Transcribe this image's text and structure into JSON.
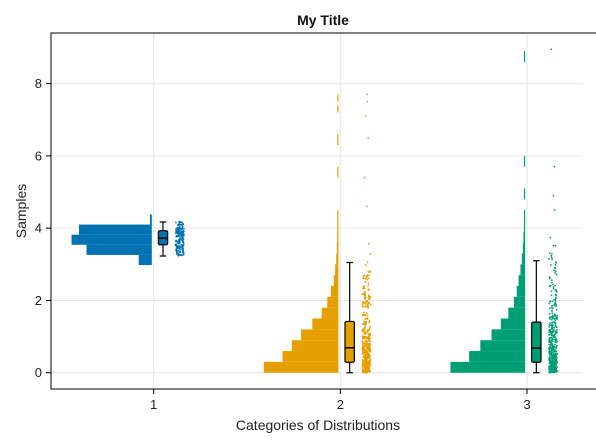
{
  "chart_data": {
    "type": "raincloud",
    "title": "My Title",
    "xlabel": "Categories of Distributions",
    "ylabel": "Samples",
    "xlim": [
      0.45,
      3.3
    ],
    "ylim": [
      -0.45,
      9.4
    ],
    "x_ticks": [
      1,
      2,
      3
    ],
    "y_ticks": [
      0,
      2,
      4,
      6,
      8
    ],
    "grid": true,
    "series": [
      {
        "category": 1,
        "color": "#0072B2",
        "histogram": [
          {
            "y0": 2.98,
            "y1": 3.26,
            "width": 0.07
          },
          {
            "y0": 3.26,
            "y1": 3.54,
            "width": 0.35
          },
          {
            "y0": 3.54,
            "y1": 3.82,
            "width": 0.43
          },
          {
            "y0": 3.82,
            "y1": 4.1,
            "width": 0.39
          },
          {
            "y0": 4.1,
            "y1": 4.38,
            "width": 0.01
          }
        ],
        "box": {
          "min": 3.23,
          "q1": 3.54,
          "median": 3.72,
          "q3": 3.93,
          "max": 4.17
        },
        "points_range": [
          3.23,
          4.18
        ]
      },
      {
        "category": 2,
        "color": "#E69F00",
        "histogram": [
          {
            "y0": 0.0,
            "y1": 0.3,
            "width": 0.4
          },
          {
            "y0": 0.3,
            "y1": 0.6,
            "width": 0.3
          },
          {
            "y0": 0.6,
            "y1": 0.9,
            "width": 0.25
          },
          {
            "y0": 0.9,
            "y1": 1.2,
            "width": 0.2
          },
          {
            "y0": 1.2,
            "y1": 1.5,
            "width": 0.14
          },
          {
            "y0": 1.5,
            "y1": 1.8,
            "width": 0.09
          },
          {
            "y0": 1.8,
            "y1": 2.1,
            "width": 0.06
          },
          {
            "y0": 2.1,
            "y1": 2.4,
            "width": 0.04
          },
          {
            "y0": 2.4,
            "y1": 2.7,
            "width": 0.025
          },
          {
            "y0": 2.7,
            "y1": 3.0,
            "width": 0.018
          },
          {
            "y0": 3.0,
            "y1": 3.3,
            "width": 0.012
          },
          {
            "y0": 3.3,
            "y1": 3.6,
            "width": 0.009
          },
          {
            "y0": 3.6,
            "y1": 3.9,
            "width": 0.007
          },
          {
            "y0": 3.9,
            "y1": 4.2,
            "width": 0.005
          },
          {
            "y0": 4.2,
            "y1": 4.5,
            "width": 0.004
          },
          {
            "y0": 5.4,
            "y1": 5.7,
            "width": 0.003
          },
          {
            "y0": 6.3,
            "y1": 6.6,
            "width": 0.003
          },
          {
            "y0": 7.2,
            "y1": 7.4,
            "width": 0.003
          },
          {
            "y0": 7.5,
            "y1": 7.7,
            "width": 0.003
          }
        ],
        "box": {
          "min": 0.0,
          "q1": 0.29,
          "median": 0.69,
          "q3": 1.42,
          "max": 3.05
        },
        "points_range": [
          0.0,
          4.4
        ],
        "outliers": [
          4.6,
          5.4,
          6.5,
          7.1,
          7.5,
          7.7
        ]
      },
      {
        "category": 3,
        "color": "#009E73",
        "histogram": [
          {
            "y0": 0.0,
            "y1": 0.3,
            "width": 0.4
          },
          {
            "y0": 0.3,
            "y1": 0.6,
            "width": 0.3
          },
          {
            "y0": 0.6,
            "y1": 0.9,
            "width": 0.24
          },
          {
            "y0": 0.9,
            "y1": 1.2,
            "width": 0.18
          },
          {
            "y0": 1.2,
            "y1": 1.5,
            "width": 0.13
          },
          {
            "y0": 1.5,
            "y1": 1.8,
            "width": 0.09
          },
          {
            "y0": 1.8,
            "y1": 2.1,
            "width": 0.06
          },
          {
            "y0": 2.1,
            "y1": 2.4,
            "width": 0.045
          },
          {
            "y0": 2.4,
            "y1": 2.7,
            "width": 0.035
          },
          {
            "y0": 2.7,
            "y1": 3.0,
            "width": 0.025
          },
          {
            "y0": 3.0,
            "y1": 3.3,
            "width": 0.018
          },
          {
            "y0": 3.3,
            "y1": 3.6,
            "width": 0.012
          },
          {
            "y0": 3.6,
            "y1": 3.9,
            "width": 0.009
          },
          {
            "y0": 3.9,
            "y1": 4.2,
            "width": 0.006
          },
          {
            "y0": 4.2,
            "y1": 4.5,
            "width": 0.004
          },
          {
            "y0": 4.8,
            "y1": 5.1,
            "width": 0.003
          },
          {
            "y0": 5.7,
            "y1": 6.0,
            "width": 0.003
          },
          {
            "y0": 8.6,
            "y1": 8.9,
            "width": 0.003
          }
        ],
        "box": {
          "min": 0.0,
          "q1": 0.29,
          "median": 0.68,
          "q3": 1.4,
          "max": 3.1
        },
        "points_range": [
          0.0,
          4.4
        ],
        "outliers": [
          4.5,
          4.9,
          5.7,
          8.95
        ]
      }
    ]
  }
}
